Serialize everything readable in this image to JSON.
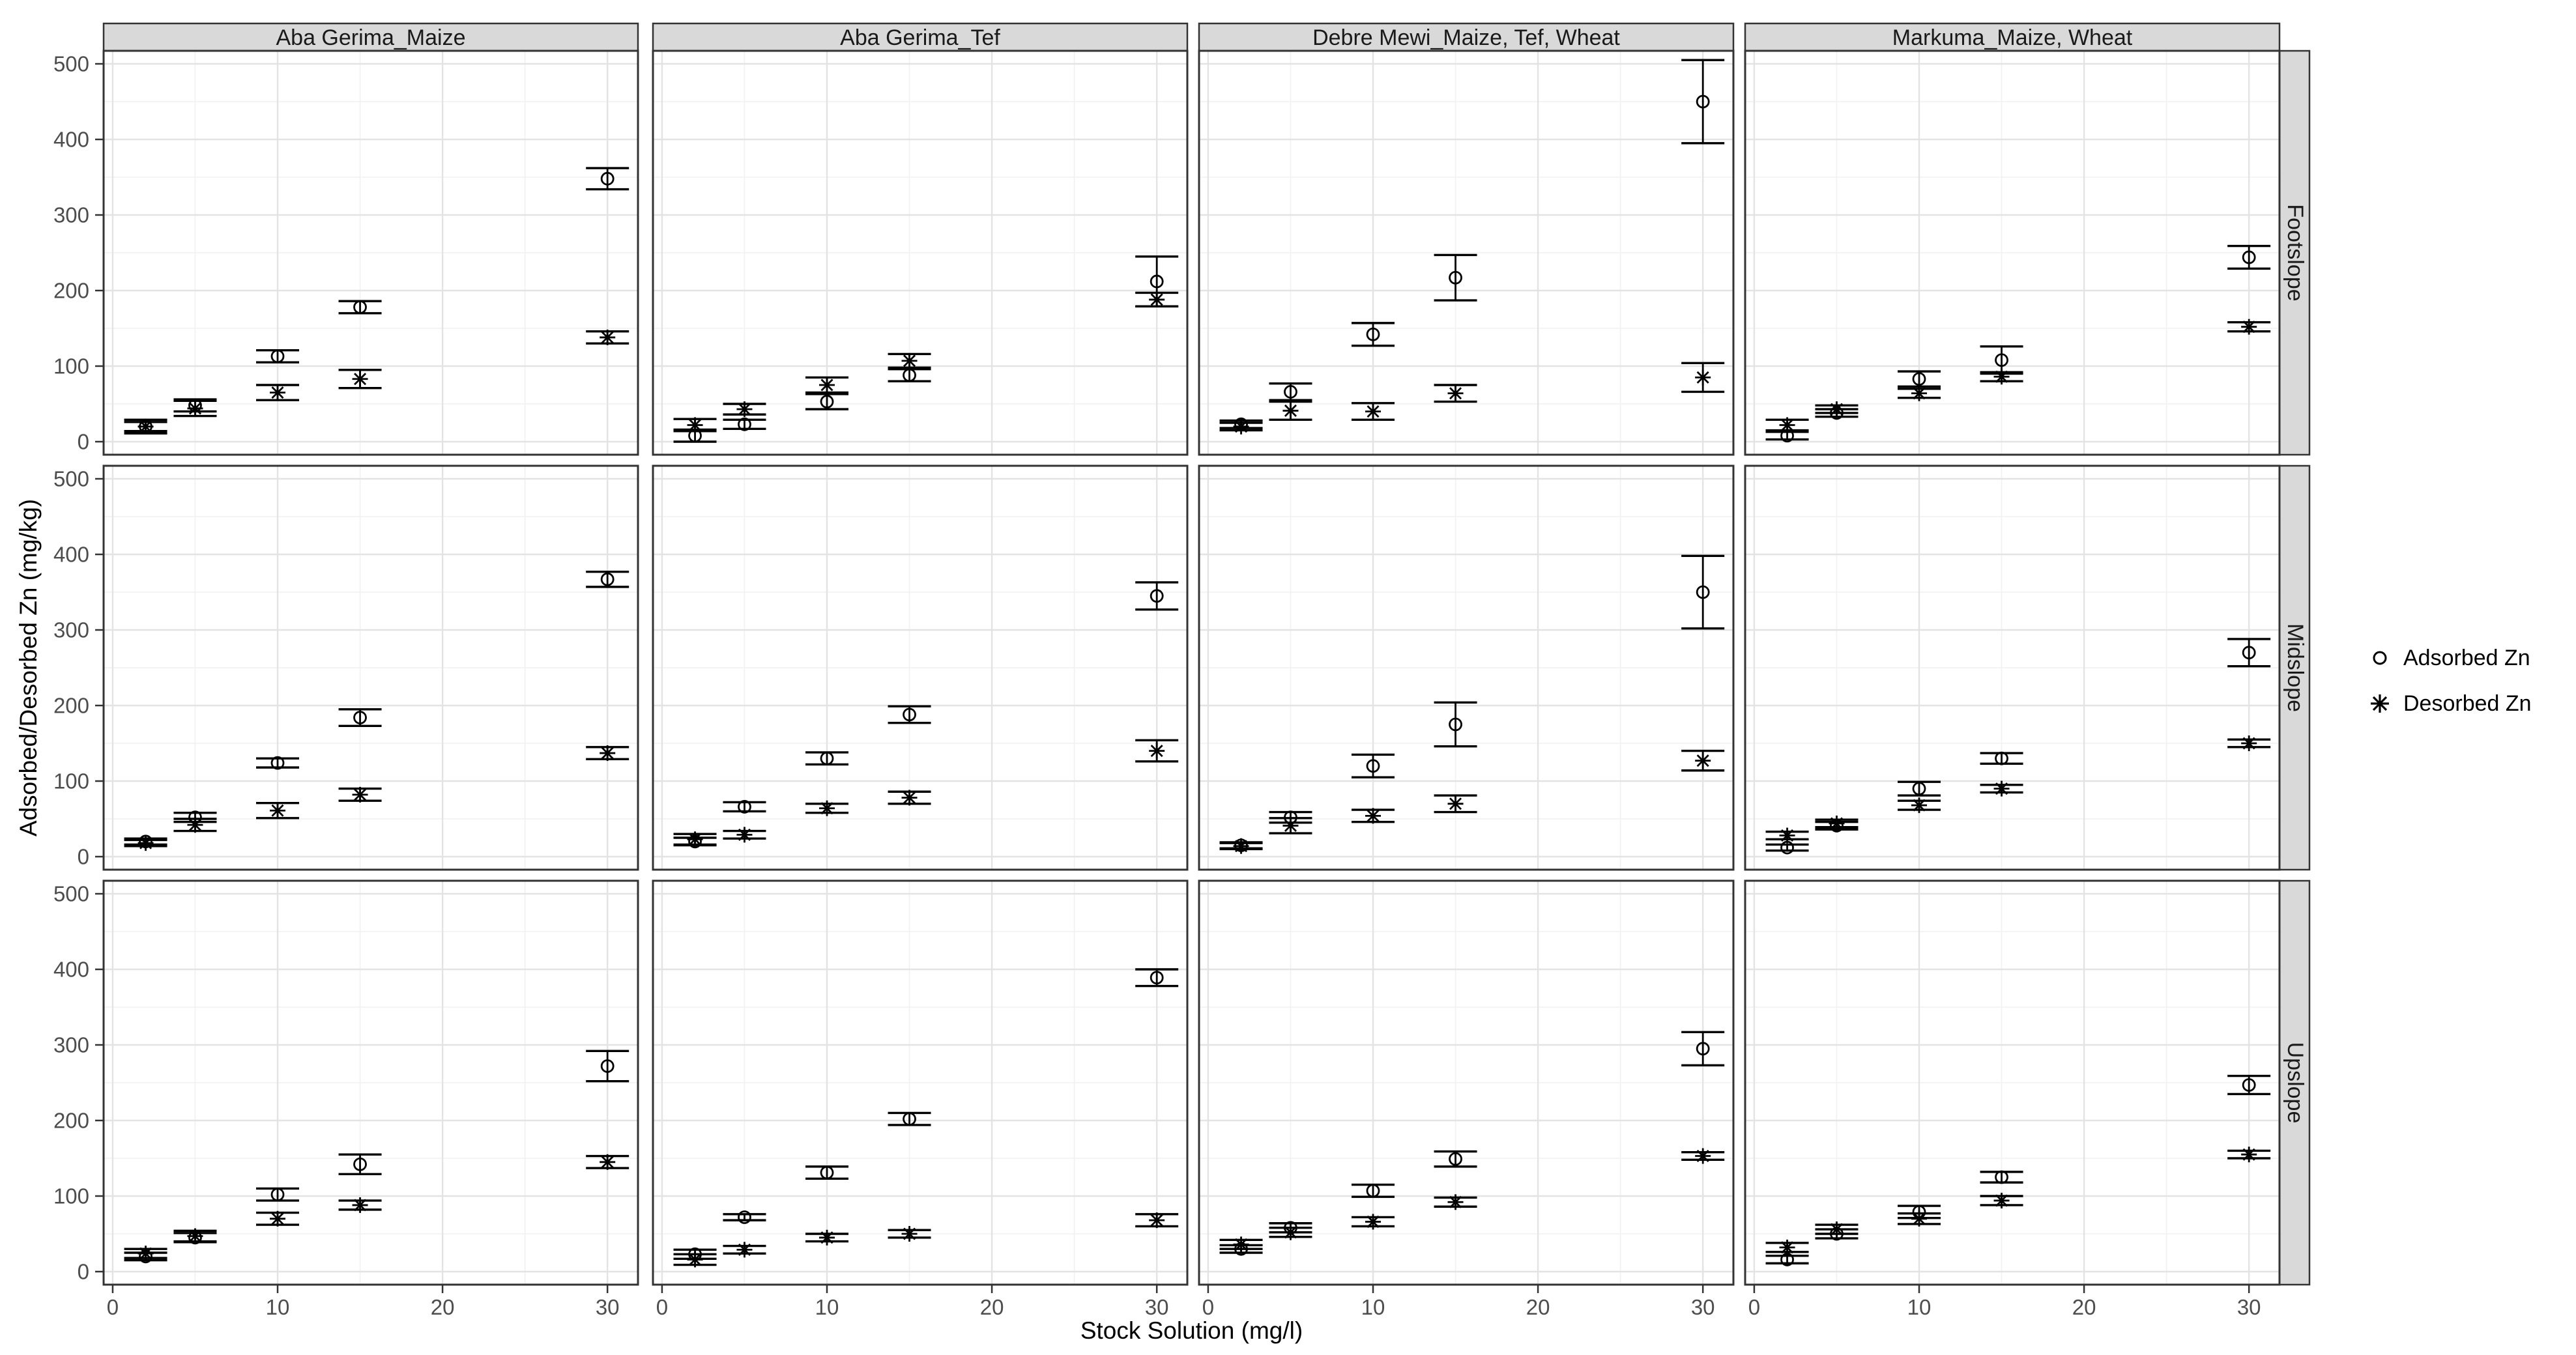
{
  "figure_title": "",
  "axes": {
    "x_title": "Stock Solution (mg/l)",
    "y_title": "Adsorbed/Desorbed Zn (mg/kg)"
  },
  "legend": {
    "items": [
      {
        "marker": "open-circle",
        "label": "Adsorbed Zn"
      },
      {
        "marker": "asterisk",
        "label": "Desorbed Zn"
      }
    ]
  },
  "colors": {
    "strip_bg": "#d9d9d9",
    "strip_border": "#333333",
    "panel_border": "#333333",
    "panel_bg": "#ffffff",
    "grid_major": "#e3e3e3",
    "grid_minor": "#f1f1f1",
    "axis_text": "#4d4d4d",
    "tick_mark": "#333333",
    "marker": "#000000"
  },
  "chart_data": {
    "type": "scatter",
    "title": "",
    "xlabel": "Stock Solution (mg/l)",
    "ylabel": "Adsorbed/Desorbed Zn (mg/kg)",
    "legend_position": "right",
    "grid": "major+minor",
    "series_labels": [
      "Adsorbed Zn",
      "Desorbed Zn"
    ],
    "facet_columns": [
      "Aba Gerima_Maize",
      "Aba Gerima_Tef",
      "Debre Mewi_Maize, Tef, Wheat",
      "Markuma_Maize, Wheat"
    ],
    "facet_rows": [
      "Footslope",
      "Midslope",
      "Upslope"
    ],
    "x": [
      2,
      5,
      10,
      15,
      30
    ],
    "x_ticks": [
      0,
      10,
      20,
      30
    ],
    "x_minor": [
      5,
      15,
      25
    ],
    "y_ticks": [
      0,
      100,
      200,
      300,
      400,
      500
    ],
    "y_minor": [
      50,
      150,
      250,
      350,
      450
    ],
    "xlim": [
      -0.55,
      31.85
    ],
    "ylim": [
      -17,
      517
    ],
    "error_bars": "mean +/- sd",
    "panels": [
      {
        "row": "Footslope",
        "col": "Aba Gerima_Maize",
        "adsorbed": {
          "y": [
            20,
            48,
            113,
            178,
            348
          ],
          "err": [
            6,
            8,
            8,
            8,
            14
          ]
        },
        "desorbed": {
          "y": [
            20,
            44,
            65,
            83,
            138
          ],
          "err": [
            9,
            10,
            10,
            12,
            8
          ]
        }
      },
      {
        "row": "Footslope",
        "col": "Aba Gerima_Tef",
        "adsorbed": {
          "y": [
            8,
            23,
            53,
            88,
            212
          ],
          "err": [
            8,
            6,
            10,
            8,
            33
          ]
        },
        "desorbed": {
          "y": [
            22,
            43,
            75,
            107,
            188
          ],
          "err": [
            8,
            7,
            10,
            9,
            9
          ]
        }
      },
      {
        "row": "Footslope",
        "col": "Debre Mewi_Maize, Tef, Wheat",
        "adsorbed": {
          "y": [
            23,
            66,
            142,
            217,
            450
          ],
          "err": [
            5,
            11,
            15,
            30,
            55
          ]
        },
        "desorbed": {
          "y": [
            20,
            41,
            40,
            64,
            85
          ],
          "err": [
            5,
            12,
            11,
            11,
            19
          ]
        }
      },
      {
        "row": "Footslope",
        "col": "Markuma_Maize, Wheat",
        "adsorbed": {
          "y": [
            8,
            38,
            83,
            108,
            244
          ],
          "err": [
            5,
            5,
            10,
            18,
            15
          ]
        },
        "desorbed": {
          "y": [
            22,
            43,
            64,
            86,
            152
          ],
          "err": [
            7,
            5,
            6,
            6,
            6
          ]
        }
      },
      {
        "row": "Midslope",
        "col": "Aba Gerima_Maize",
        "adsorbed": {
          "y": [
            20,
            52,
            124,
            184,
            367
          ],
          "err": [
            4,
            6,
            6,
            11,
            10
          ]
        },
        "desorbed": {
          "y": [
            18,
            42,
            61,
            82,
            137
          ],
          "err": [
            4,
            8,
            10,
            8,
            8
          ]
        }
      },
      {
        "row": "Midslope",
        "col": "Aba Gerima_Tef",
        "adsorbed": {
          "y": [
            20,
            66,
            130,
            188,
            345
          ],
          "err": [
            5,
            6,
            8,
            11,
            18
          ]
        },
        "desorbed": {
          "y": [
            23,
            29,
            64,
            78,
            140
          ],
          "err": [
            7,
            5,
            6,
            8,
            14
          ]
        }
      },
      {
        "row": "Midslope",
        "col": "Debre Mewi_Maize, Tef, Wheat",
        "adsorbed": {
          "y": [
            15,
            52,
            120,
            175,
            350
          ],
          "err": [
            4,
            7,
            15,
            29,
            48
          ]
        },
        "desorbed": {
          "y": [
            14,
            41,
            54,
            70,
            127
          ],
          "err": [
            4,
            10,
            8,
            11,
            13
          ]
        }
      },
      {
        "row": "Midslope",
        "col": "Markuma_Maize, Wheat",
        "adsorbed": {
          "y": [
            12,
            41,
            90,
            130,
            270
          ],
          "err": [
            4,
            5,
            9,
            7,
            18
          ]
        },
        "desorbed": {
          "y": [
            28,
            44,
            68,
            90,
            150
          ],
          "err": [
            5,
            5,
            6,
            5,
            5
          ]
        }
      },
      {
        "row": "Upslope",
        "col": "Aba Gerima_Maize",
        "adsorbed": {
          "y": [
            20,
            45,
            102,
            142,
            272
          ],
          "err": [
            5,
            6,
            8,
            13,
            20
          ]
        },
        "desorbed": {
          "y": [
            24,
            47,
            70,
            88,
            145
          ],
          "err": [
            6,
            7,
            8,
            6,
            8
          ]
        }
      },
      {
        "row": "Upslope",
        "col": "Aba Gerima_Tef",
        "adsorbed": {
          "y": [
            23,
            72,
            131,
            202,
            389
          ],
          "err": [
            6,
            4,
            8,
            8,
            11
          ]
        },
        "desorbed": {
          "y": [
            16,
            29,
            45,
            50,
            68
          ],
          "err": [
            7,
            5,
            5,
            5,
            8
          ]
        }
      },
      {
        "row": "Upslope",
        "col": "Debre Mewi_Maize, Tef, Wheat",
        "adsorbed": {
          "y": [
            30,
            58,
            107,
            149,
            295
          ],
          "err": [
            5,
            6,
            8,
            10,
            22
          ]
        },
        "desorbed": {
          "y": [
            36,
            52,
            66,
            92,
            153
          ],
          "err": [
            6,
            6,
            6,
            6,
            5
          ]
        }
      },
      {
        "row": "Upslope",
        "col": "Markuma_Maize, Wheat",
        "adsorbed": {
          "y": [
            16,
            50,
            79,
            125,
            247
          ],
          "err": [
            5,
            6,
            8,
            7,
            12
          ]
        },
        "desorbed": {
          "y": [
            32,
            56,
            70,
            94,
            155
          ],
          "err": [
            6,
            6,
            7,
            6,
            5
          ]
        }
      }
    ]
  }
}
